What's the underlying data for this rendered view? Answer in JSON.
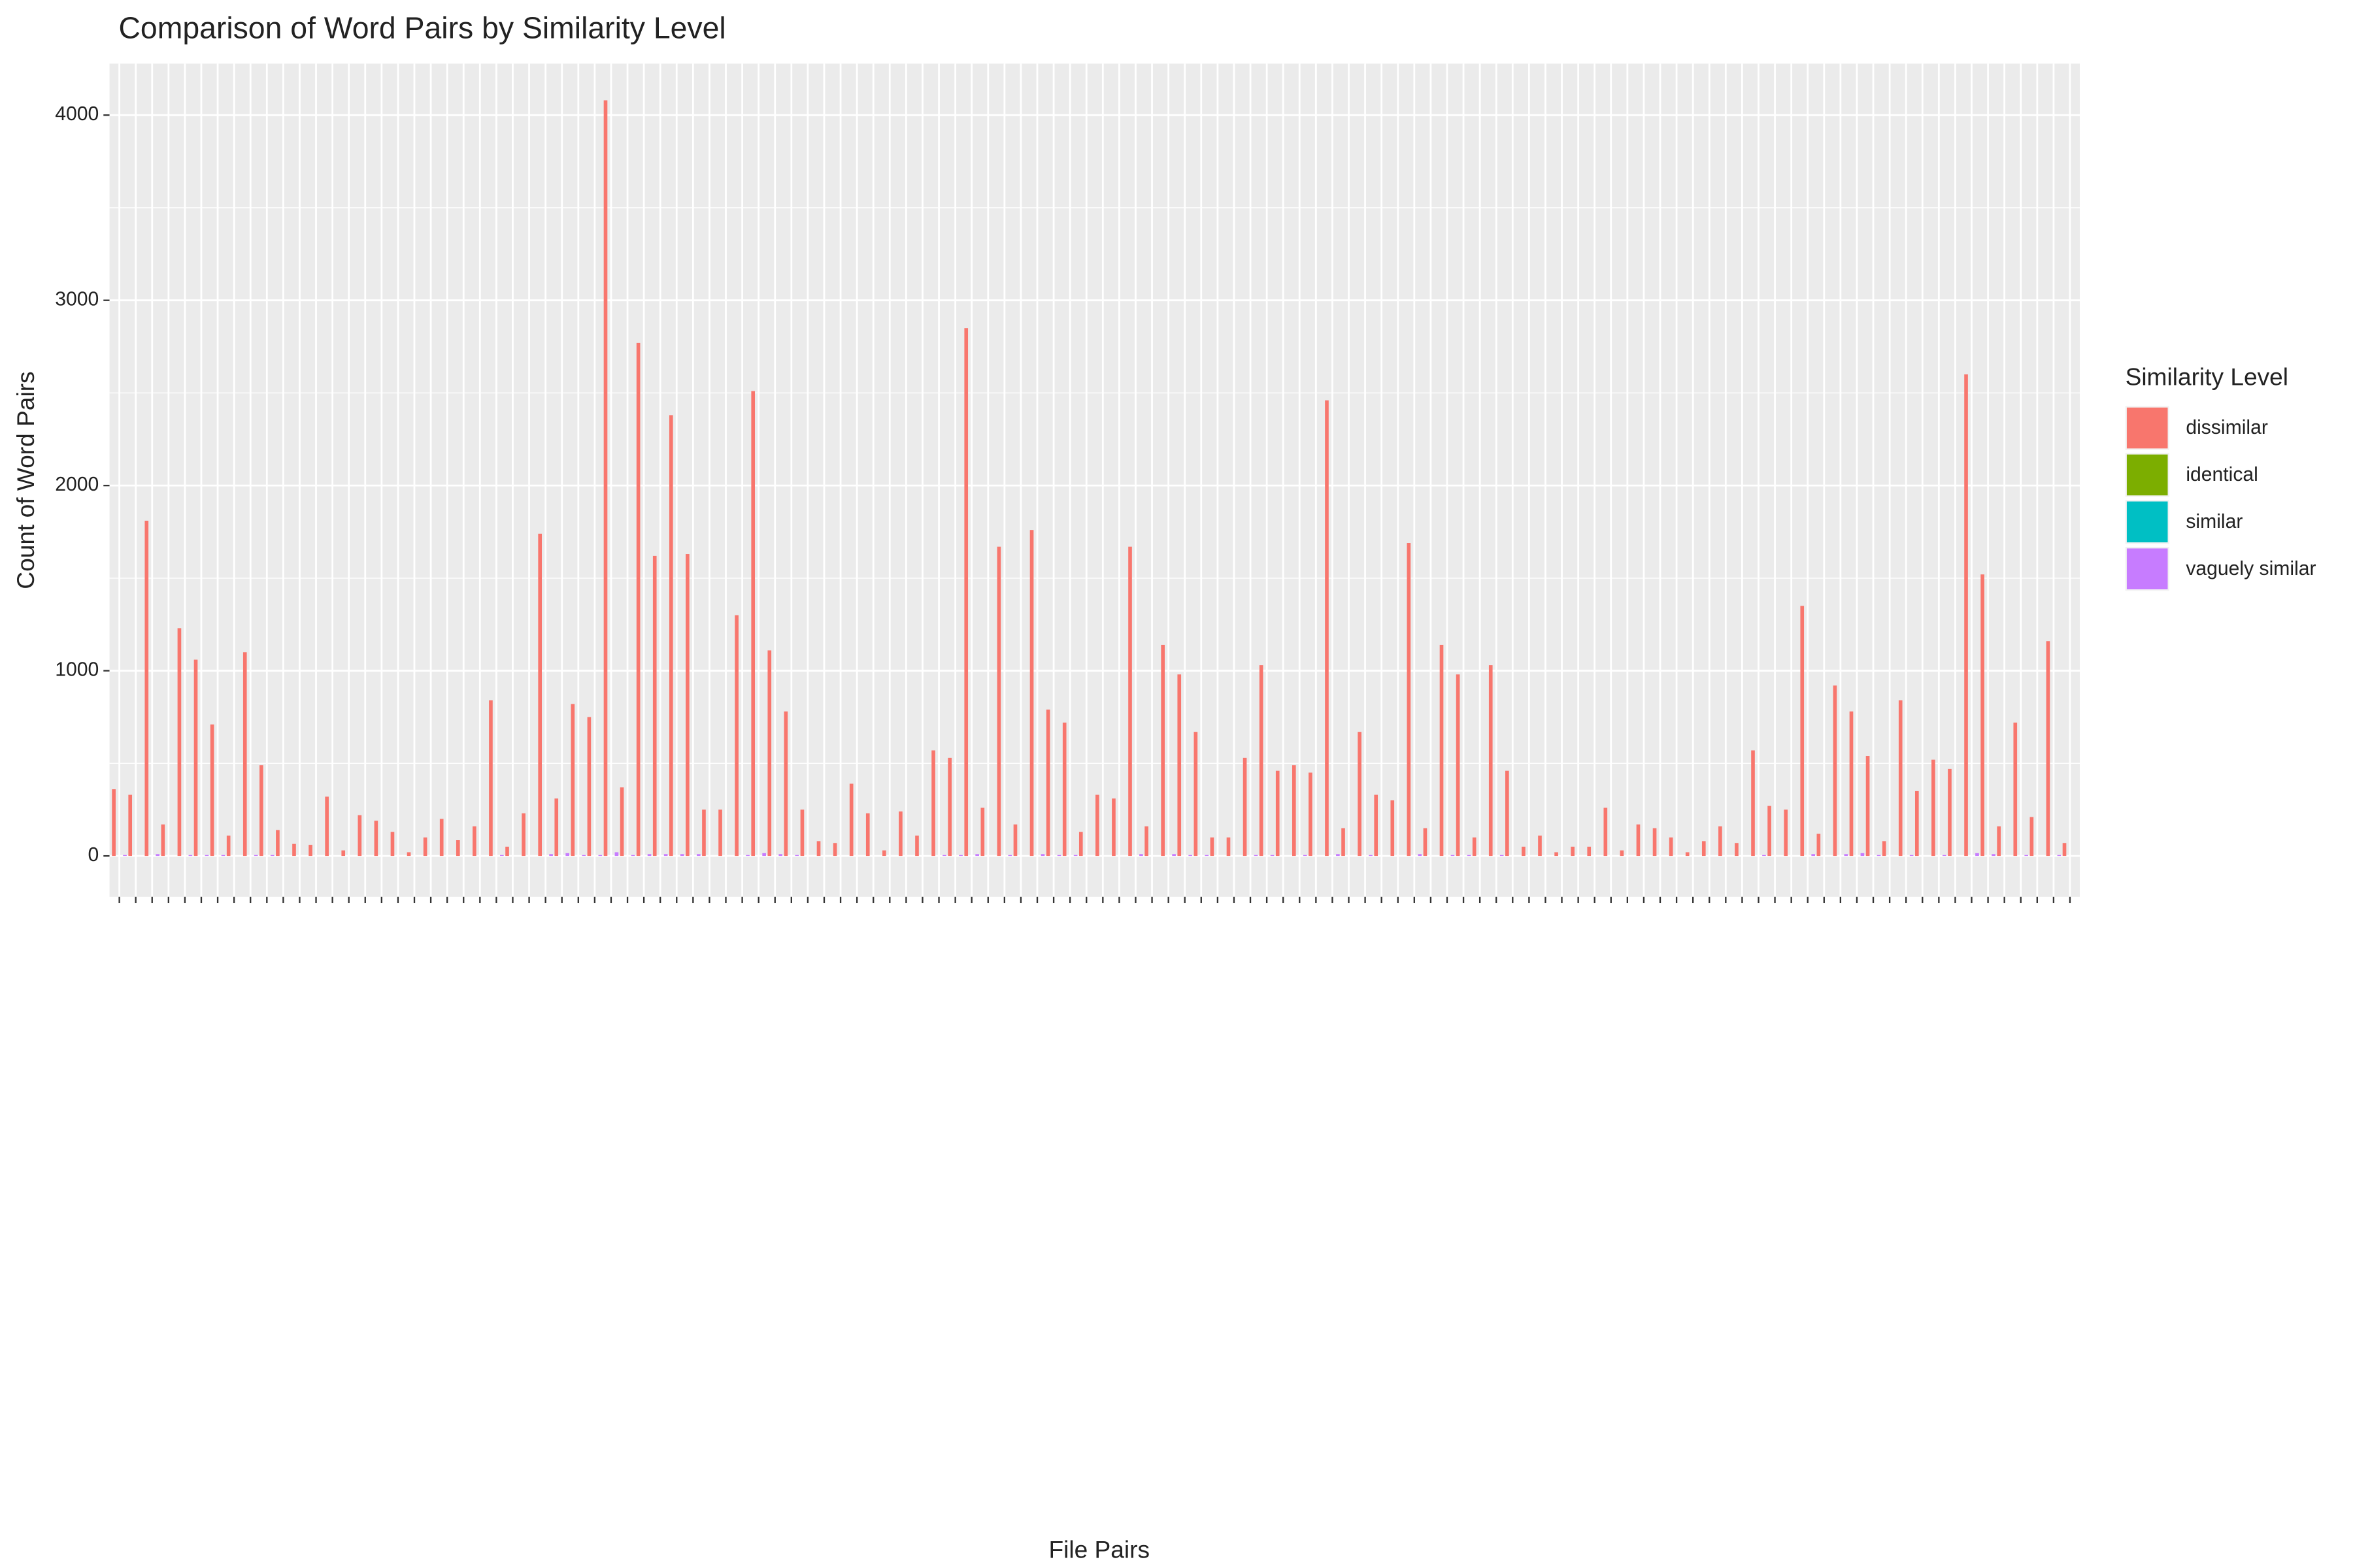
{
  "chart_data": {
    "type": "bar",
    "title": "Comparison of Word Pairs by Similarity Level",
    "x_label": "File Pairs",
    "y_label": "Count of Word Pairs",
    "legend_title": "Similarity Level",
    "legend_position": "right",
    "grid": true,
    "categories": [
      null,
      null,
      null,
      null,
      null,
      null,
      null,
      null,
      null,
      null,
      null,
      null,
      null,
      null,
      null,
      null,
      null,
      null,
      null,
      null,
      null,
      null,
      null,
      null,
      null,
      null,
      null,
      null,
      null,
      null,
      null,
      null,
      null,
      null,
      null,
      null,
      null,
      null,
      null,
      null,
      null,
      null,
      null,
      null,
      null,
      null,
      null,
      null,
      null,
      null,
      null,
      null,
      null,
      null,
      null,
      null,
      null,
      null,
      null,
      null,
      null,
      null,
      null,
      null,
      null,
      null,
      null,
      null,
      null,
      null,
      null,
      null,
      null,
      null,
      null,
      null,
      null,
      null,
      null,
      null,
      null,
      null,
      null,
      null,
      null,
      null,
      null,
      null,
      null,
      null,
      null,
      null,
      null,
      null,
      null,
      null,
      null,
      null,
      null,
      null,
      null,
      null,
      null,
      null,
      null,
      null,
      null,
      null,
      null,
      null,
      null,
      null,
      null,
      null,
      null,
      null,
      null,
      null,
      null,
      null
    ],
    "ylim": [
      -221,
      4278
    ],
    "yticks": [
      0,
      1000,
      2000,
      3000,
      4000
    ],
    "series": [
      {
        "name": "dissimilar",
        "color": "#f8766d",
        "values": [
          360,
          330,
          1810,
          170,
          1230,
          1060,
          710,
          110,
          1100,
          490,
          140,
          65,
          60,
          320,
          30,
          220,
          190,
          130,
          20,
          100,
          200,
          85,
          160,
          840,
          50,
          230,
          1740,
          310,
          820,
          750,
          4080,
          370,
          2770,
          1620,
          2380,
          1630,
          250,
          250,
          1300,
          2510,
          1110,
          780,
          250,
          80,
          70,
          390,
          230,
          30,
          240,
          110,
          570,
          530,
          2850,
          260,
          1670,
          170,
          1760,
          790,
          720,
          130,
          330,
          310,
          1670,
          160,
          1140,
          980,
          670,
          100,
          100,
          530,
          1030,
          460,
          490,
          450,
          2460,
          150,
          670,
          330,
          300,
          1690,
          150,
          1140,
          980,
          100,
          1030,
          460,
          50,
          110,
          20,
          50,
          50,
          260,
          30,
          170,
          150,
          100,
          20,
          80,
          160,
          70,
          570,
          270,
          250,
          1350,
          120,
          920,
          780,
          540,
          80,
          840,
          350,
          520,
          470,
          2600,
          1520,
          160,
          720,
          210,
          1160,
          70
        ]
      },
      {
        "name": "identical",
        "color": "#7cae00",
        "values": [
          0,
          0,
          0,
          0,
          0,
          0,
          0,
          0,
          0,
          0,
          0,
          0,
          0,
          0,
          0,
          0,
          0,
          0,
          0,
          0,
          0,
          0,
          0,
          0,
          0,
          0,
          0,
          0,
          0,
          0,
          0,
          0,
          0,
          0,
          0,
          0,
          0,
          0,
          0,
          0,
          0,
          0,
          0,
          0,
          0,
          0,
          0,
          0,
          0,
          0,
          0,
          0,
          0,
          0,
          0,
          0,
          0,
          0,
          0,
          0,
          0,
          0,
          0,
          0,
          0,
          0,
          0,
          0,
          0,
          0,
          0,
          0,
          0,
          0,
          0,
          0,
          0,
          0,
          0,
          0,
          0,
          0,
          0,
          0,
          0,
          0,
          0,
          0,
          0,
          0,
          0,
          0,
          0,
          0,
          0,
          0,
          0,
          0,
          0,
          0,
          0,
          0,
          0,
          0,
          0,
          0,
          0,
          0,
          0,
          0,
          0,
          0,
          0,
          0,
          0,
          0,
          0,
          0,
          0,
          0
        ]
      },
      {
        "name": "similar",
        "color": "#00bfc4",
        "values": [
          0,
          0,
          0,
          0,
          0,
          0,
          0,
          0,
          0,
          0,
          0,
          0,
          0,
          0,
          0,
          0,
          0,
          0,
          0,
          0,
          0,
          0,
          0,
          0,
          0,
          0,
          0,
          0,
          0,
          0,
          0,
          0,
          0,
          0,
          0,
          0,
          0,
          0,
          0,
          0,
          0,
          0,
          0,
          0,
          0,
          0,
          0,
          0,
          0,
          0,
          0,
          0,
          0,
          0,
          0,
          0,
          0,
          0,
          0,
          0,
          0,
          0,
          0,
          0,
          0,
          0,
          0,
          0,
          0,
          0,
          0,
          0,
          0,
          0,
          0,
          0,
          0,
          0,
          0,
          0,
          0,
          0,
          0,
          0,
          0,
          0,
          0,
          0,
          0,
          0,
          0,
          0,
          0,
          0,
          0,
          0,
          0,
          0,
          0,
          0,
          0,
          0,
          0,
          0,
          0,
          0,
          0,
          0,
          0,
          0,
          0,
          0,
          0,
          0,
          0,
          0,
          0,
          0,
          0,
          0
        ]
      },
      {
        "name": "vaguely similar",
        "color": "#c77cff",
        "values": [
          5,
          0,
          10,
          0,
          5,
          5,
          5,
          0,
          5,
          5,
          0,
          0,
          0,
          0,
          0,
          0,
          0,
          0,
          0,
          0,
          0,
          0,
          0,
          5,
          0,
          0,
          10,
          15,
          5,
          5,
          20,
          5,
          10,
          10,
          10,
          10,
          0,
          0,
          5,
          15,
          10,
          5,
          0,
          0,
          0,
          0,
          0,
          0,
          0,
          0,
          5,
          5,
          10,
          0,
          5,
          0,
          10,
          5,
          5,
          0,
          0,
          0,
          10,
          0,
          10,
          5,
          5,
          0,
          0,
          5,
          5,
          0,
          5,
          0,
          10,
          0,
          5,
          0,
          0,
          10,
          0,
          5,
          5,
          0,
          5,
          0,
          0,
          0,
          0,
          0,
          0,
          0,
          0,
          0,
          0,
          0,
          0,
          0,
          0,
          0,
          5,
          0,
          0,
          10,
          0,
          10,
          15,
          5,
          0,
          5,
          0,
          5,
          0,
          15,
          10,
          0,
          5,
          0,
          5,
          0
        ]
      }
    ]
  }
}
